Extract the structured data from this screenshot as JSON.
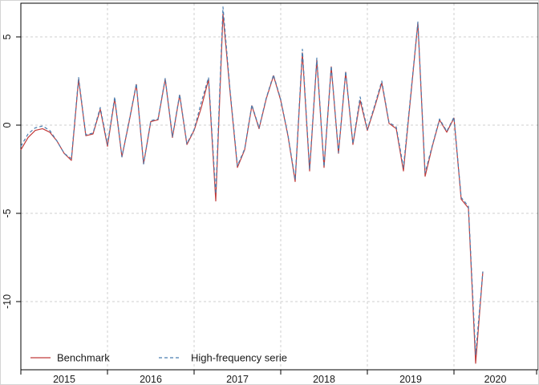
{
  "window": {
    "background": "#ffffff",
    "frame_color": "#d4d4d4"
  },
  "chart_data": {
    "type": "line",
    "title": "",
    "xlabel": "",
    "ylabel": "",
    "x_unit": "month",
    "x_start": "2015-01",
    "x_end": "2020-05",
    "x_tick_labels": [
      "2015",
      "2016",
      "2017",
      "2018",
      "2019",
      "2020"
    ],
    "y_tick_values": [
      5,
      0,
      -5,
      -10
    ],
    "y_tick_labels": [
      "5",
      "0",
      "-5",
      "-10"
    ],
    "ylim": [
      -13.9,
      6.9
    ],
    "grid": {
      "show": true,
      "color": "#cfcfcf",
      "style": "dashed"
    },
    "axis_color": "#000000",
    "text_color": "#1a1a1a",
    "legend": {
      "position": "bottom-left",
      "items": [
        "Benchmark",
        "High-frequency serie"
      ]
    },
    "series": [
      {
        "name": "Benchmark",
        "color": "#c13b3b",
        "line_style": "solid",
        "values": [
          -1.4,
          -0.7,
          -0.3,
          -0.2,
          -0.4,
          -0.9,
          -1.6,
          -2.0,
          2.6,
          -0.6,
          -0.5,
          0.9,
          -1.2,
          1.5,
          -1.8,
          0.2,
          2.3,
          -2.2,
          0.2,
          0.3,
          2.6,
          -0.7,
          1.7,
          -1.1,
          -0.3,
          1.0,
          2.6,
          -4.3,
          6.3,
          1.8,
          -2.4,
          -1.4,
          1.1,
          -0.2,
          1.5,
          2.8,
          1.4,
          -0.6,
          -3.2,
          4.1,
          -2.6,
          3.7,
          -2.4,
          3.3,
          -1.6,
          3.0,
          -1.1,
          1.4,
          -0.3,
          1.0,
          2.4,
          0.1,
          -0.2,
          -2.6,
          1.6,
          5.8,
          -2.9,
          -1.2,
          0.3,
          -0.4,
          0.4,
          -4.2,
          -4.7,
          -13.5,
          -8.3
        ]
      },
      {
        "name": "High-frequency serie",
        "color": "#4a7eb0",
        "line_style": "dashed",
        "values": [
          -1.2,
          -0.5,
          -0.15,
          -0.05,
          -0.3,
          -0.9,
          -1.6,
          -1.9,
          2.7,
          -0.55,
          -0.45,
          1.0,
          -1.1,
          1.6,
          -1.8,
          0.25,
          2.35,
          -2.2,
          0.25,
          0.35,
          2.65,
          -0.65,
          1.75,
          -1.05,
          -0.25,
          1.3,
          2.7,
          -3.9,
          6.7,
          1.9,
          -2.3,
          -1.35,
          1.15,
          -0.15,
          1.55,
          2.85,
          1.45,
          -0.55,
          -3.1,
          4.3,
          -2.5,
          3.8,
          -2.35,
          3.35,
          -1.55,
          3.05,
          -1.05,
          1.6,
          -0.25,
          1.1,
          2.5,
          0.15,
          -0.1,
          -2.4,
          1.7,
          5.85,
          -2.7,
          -1.15,
          0.35,
          -0.35,
          0.45,
          -4.1,
          -4.6,
          -13.0,
          -8.3
        ]
      }
    ]
  }
}
